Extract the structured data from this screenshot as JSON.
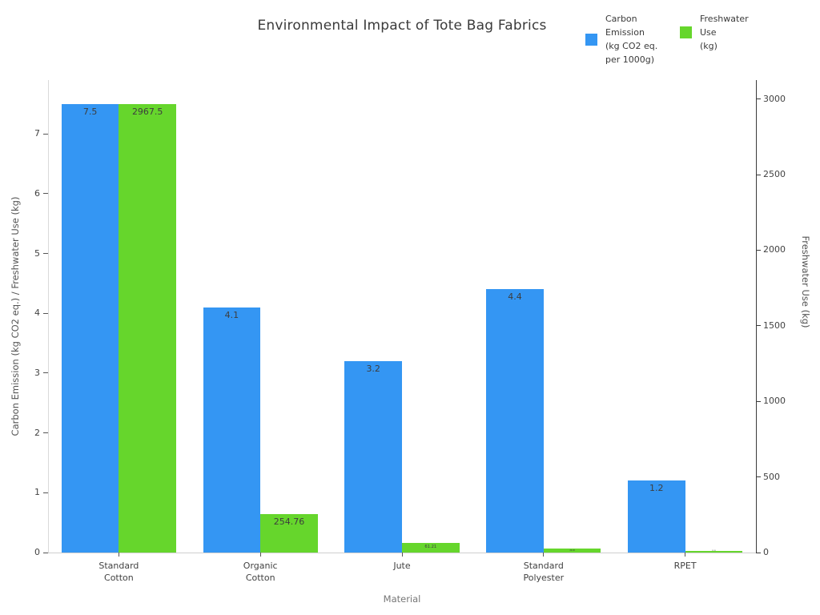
{
  "chart_data": {
    "type": "bar",
    "title": "Environmental Impact of Tote Bag Fabrics",
    "xlabel": "Material",
    "categories": [
      [
        "Standard",
        "Cotton"
      ],
      [
        "Organic",
        "Cotton"
      ],
      [
        "Jute"
      ],
      [
        "Standard",
        "Polyester"
      ],
      [
        "RPET"
      ]
    ],
    "category_slugs": [
      "standard-cotton",
      "organic-cotton",
      "jute",
      "standard-polyester",
      "rpet"
    ],
    "series": [
      {
        "name": "Carbon Emission (kg CO2 eq. per 1000g)",
        "legend_lines": "Carbon\nEmission\n(kg CO2 eq.\nper 1000g)",
        "slug": "carbon-emission",
        "axis": "left",
        "color": "#3496f3",
        "values": [
          7.5,
          4.1,
          3.2,
          4.4,
          1.2
        ],
        "labels": [
          "7.5",
          "4.1",
          "3.2",
          "4.4",
          "1.2"
        ]
      },
      {
        "name": "Freshwater Use (kg)",
        "legend_lines": "Freshwater\nUse\n(kg)",
        "slug": "freshwater-use",
        "axis": "right",
        "color": "#66d62c",
        "values": [
          2967.5,
          254.76,
          61.21,
          26.48,
          13.18
        ],
        "labels": [
          "2967.5",
          "254.76",
          "61.21",
          "26.48",
          "13.18"
        ]
      }
    ],
    "left_axis": {
      "label": "Carbon Emission (kg CO2 eq.) / Freshwater Use (kg)",
      "ticks": [
        0,
        1,
        2,
        3,
        4,
        5,
        6,
        7
      ],
      "max": 7.9
    },
    "right_axis": {
      "label": "Freshwater Use (kg)",
      "ticks": [
        0,
        500,
        1000,
        1500,
        2000,
        2500,
        3000
      ],
      "max": 3125.8
    },
    "legend_position": "top-right",
    "grid": false
  },
  "colors": {
    "carbon_bar": "#3496f3",
    "freshwater_bar": "#66d62c",
    "title_text": "#3a3a3a",
    "tick_text": "#424242",
    "value_label_text": "#3d3d3d",
    "left_spine": "#d9d9d9",
    "bottom_spine": "#cfcfcf",
    "right_spine": "#3a3a3a"
  }
}
